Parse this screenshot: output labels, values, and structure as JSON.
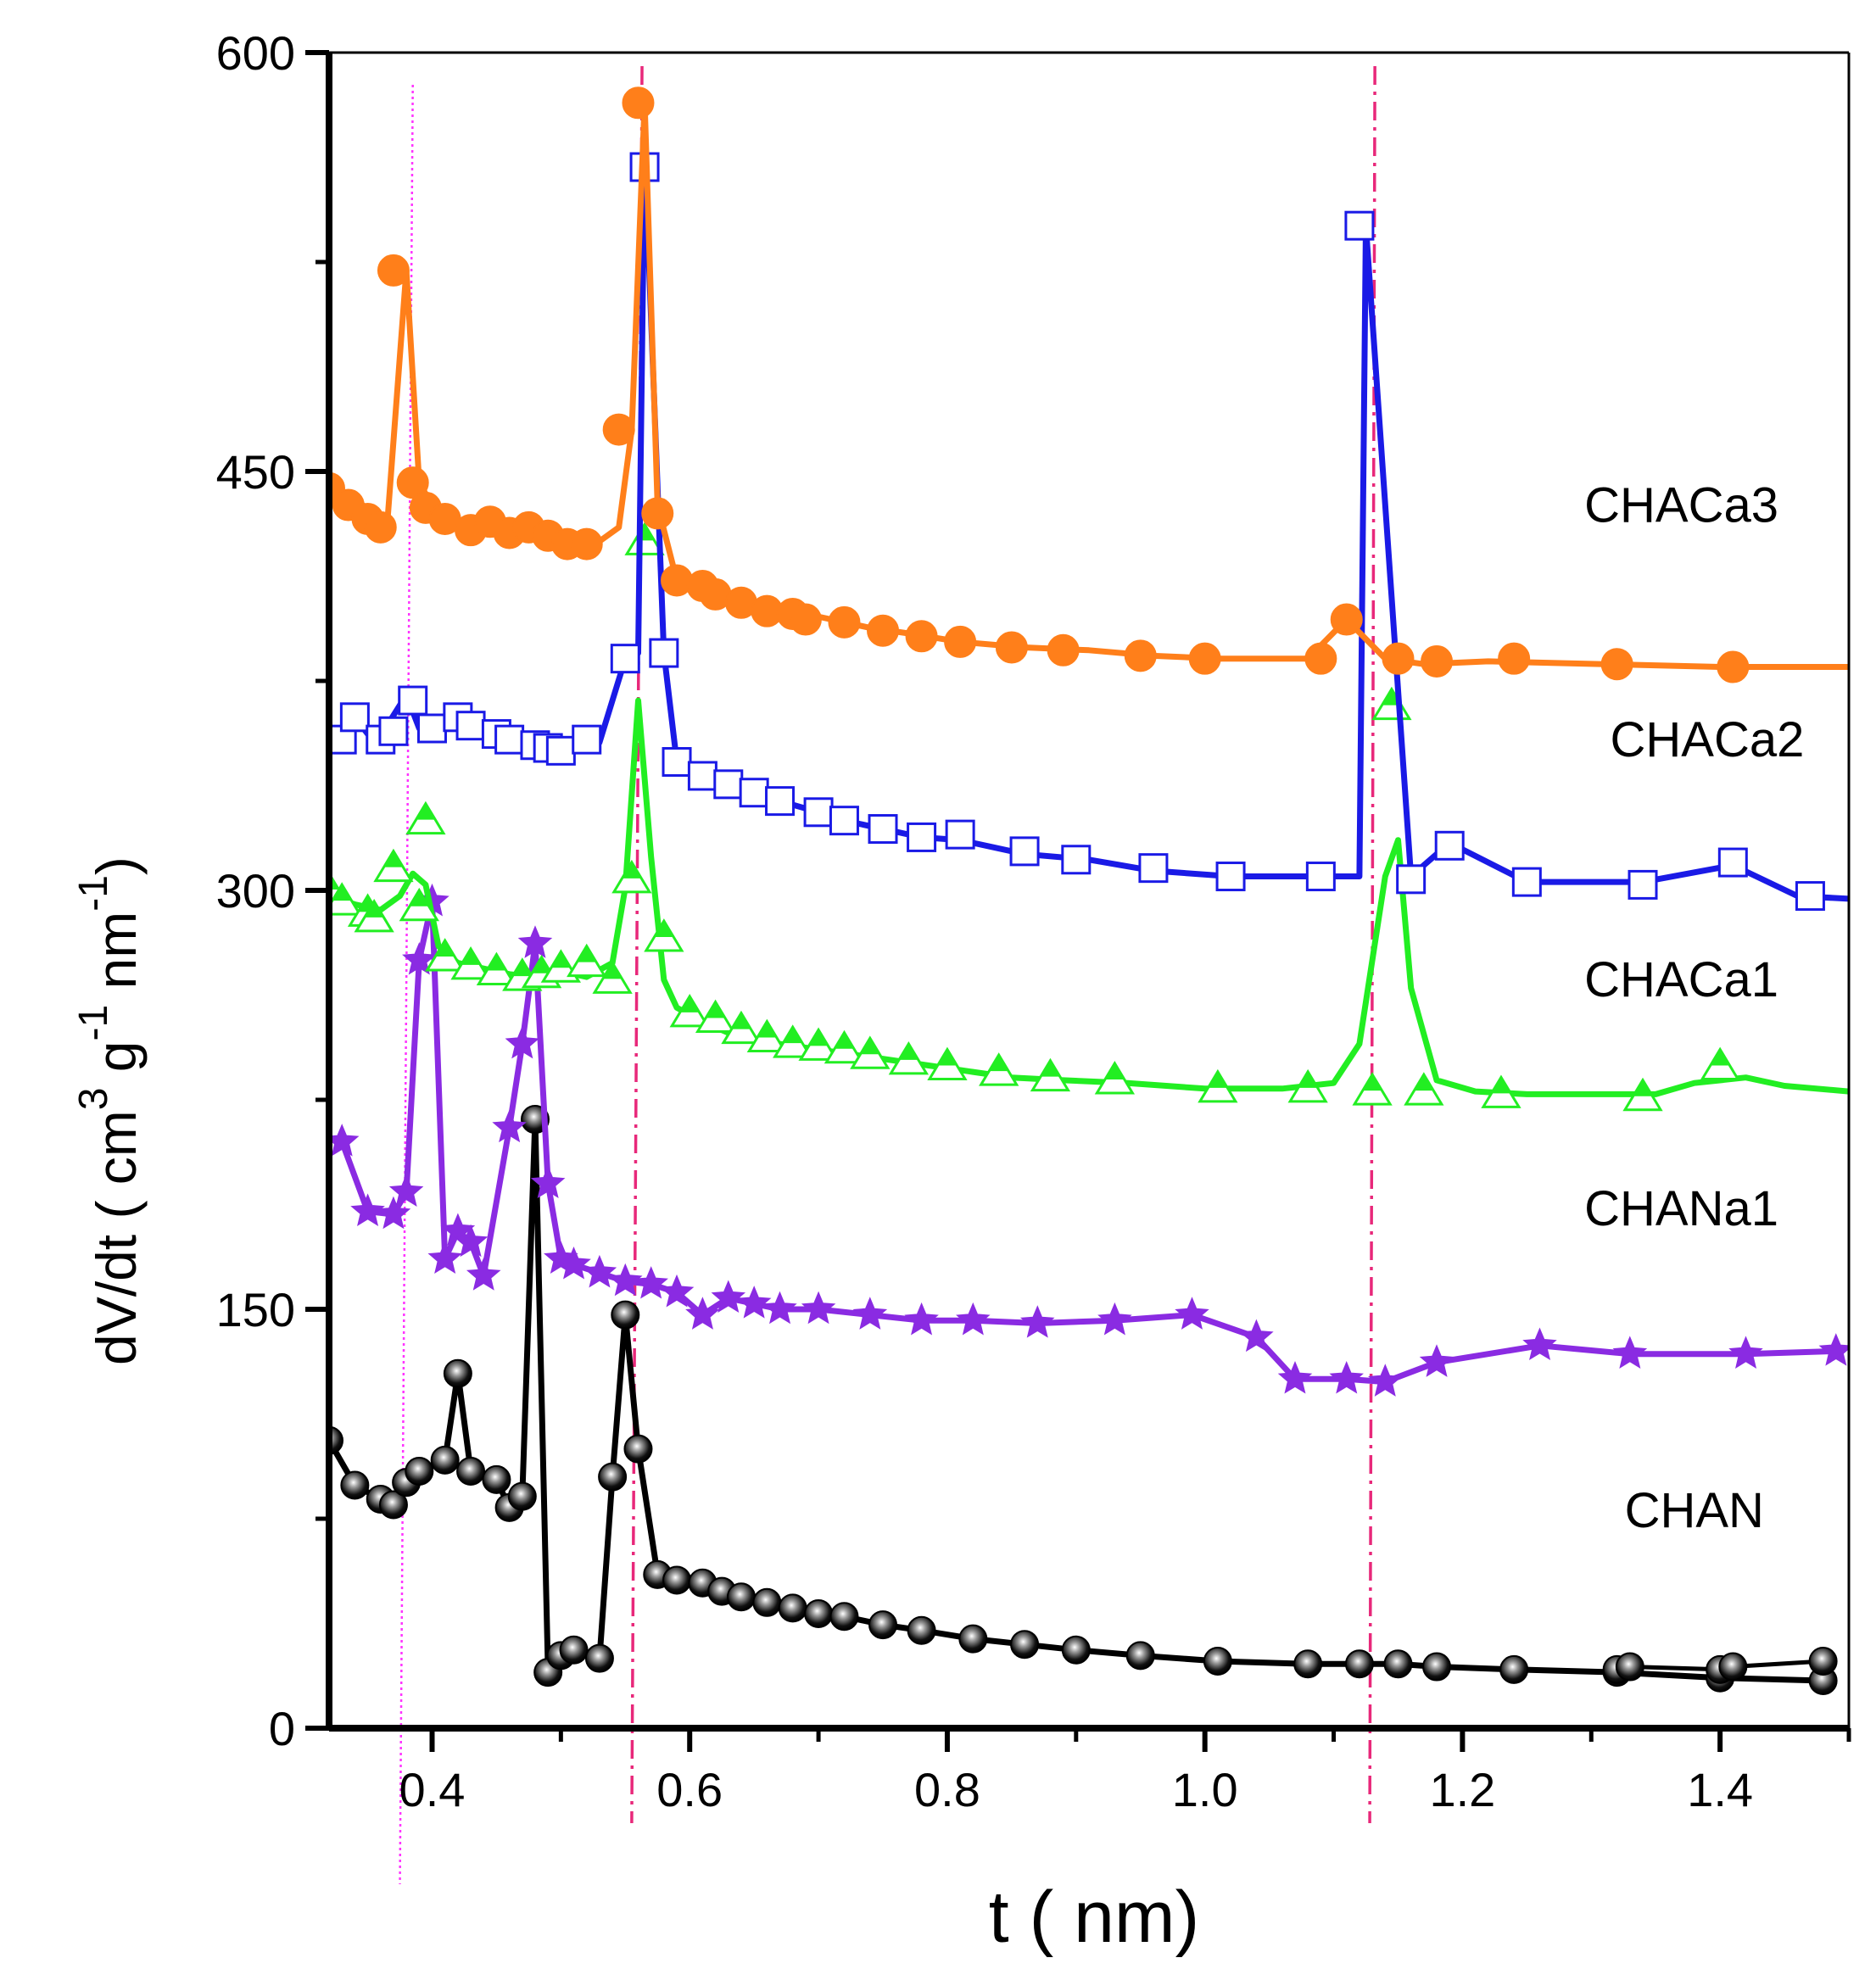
{
  "chart_data": {
    "type": "line",
    "title": "",
    "xlabel": "t (   nm)",
    "ylabel": {
      "main": "dV/dt ( cm",
      "sup1": "3",
      "mid1": " g",
      "sup2": "-1",
      "mid2": " nm",
      "sup3": "-1",
      "end": ")"
    },
    "xlim": [
      0.32,
      1.5
    ],
    "ylim": [
      0,
      600
    ],
    "xticks": [
      {
        "value": 0.4,
        "label": "0.4"
      },
      {
        "value": 0.6,
        "label": "0.6"
      },
      {
        "value": 0.8,
        "label": "0.8"
      },
      {
        "value": 1.0,
        "label": "1.0"
      },
      {
        "value": 1.2,
        "label": "1.2"
      },
      {
        "value": 1.4,
        "label": "1.4"
      }
    ],
    "yticks": [
      {
        "value": 0,
        "label": "0"
      },
      {
        "value": 150,
        "label": "150"
      },
      {
        "value": 300,
        "label": "300"
      },
      {
        "value": 450,
        "label": "450"
      },
      {
        "value": 600,
        "label": "600"
      }
    ],
    "grid": false,
    "reference_lines": [
      {
        "x": 0.375,
        "x2": 0.385,
        "color": "#ff33ff",
        "style": "dotted"
      },
      {
        "x": 0.555,
        "x2": 0.563,
        "color": "#e8287a",
        "style": "dashdot"
      },
      {
        "x": 1.128,
        "x2": 1.132,
        "color": "#e8287a",
        "style": "dashdot"
      }
    ],
    "series": [
      {
        "name": "CHAN",
        "label": "CHAN",
        "color": "#000000",
        "marker": "sphere",
        "label_pos": [
          1.38,
          72
        ],
        "x": [
          0.32,
          0.34,
          0.36,
          0.37,
          0.38,
          0.39,
          0.41,
          0.42,
          0.43,
          0.45,
          0.46,
          0.47,
          0.48,
          0.49,
          0.5,
          0.51,
          0.53,
          0.54,
          0.55,
          0.56,
          0.575,
          0.59,
          0.61,
          0.625,
          0.64,
          0.66,
          0.68,
          0.7,
          0.72,
          0.75,
          0.78,
          0.82,
          0.86,
          0.9,
          0.95,
          1.01,
          1.08,
          1.12,
          1.15,
          1.18,
          1.24,
          1.32,
          1.4,
          1.48
        ],
        "y": [
          103,
          87,
          82,
          80,
          88,
          92,
          96,
          127,
          92,
          89,
          79,
          83,
          218,
          20,
          26,
          28,
          25,
          90,
          148,
          100,
          55,
          53,
          52,
          49,
          47,
          45,
          43,
          41,
          40,
          37,
          35,
          32,
          30,
          28,
          26,
          24,
          23,
          23,
          23,
          22,
          21,
          20,
          18,
          17
        ],
        "trace": [
          [
            1.32,
            21
          ],
          [
            1.33,
            22
          ],
          [
            1.4,
            21
          ],
          [
            1.41,
            22
          ],
          [
            1.48,
            24
          ]
        ]
      },
      {
        "name": "CHANa1",
        "label": "CHANa1",
        "color": "#8a2be2",
        "marker": "star",
        "label_pos": [
          1.37,
          180
        ],
        "x": [
          0.33,
          0.35,
          0.37,
          0.38,
          0.39,
          0.4,
          0.41,
          0.42,
          0.43,
          0.44,
          0.46,
          0.47,
          0.48,
          0.49,
          0.5,
          0.51,
          0.53,
          0.55,
          0.57,
          0.59,
          0.61,
          0.63,
          0.65,
          0.67,
          0.7,
          0.74,
          0.78,
          0.82,
          0.87,
          0.93,
          0.99,
          1.04,
          1.07,
          1.11,
          1.14,
          1.18,
          1.26,
          1.33,
          1.42,
          1.49
        ],
        "y": [
          210,
          185,
          184,
          192,
          275,
          296,
          168,
          178,
          174,
          162,
          215,
          245,
          281,
          195,
          168,
          166,
          163,
          160,
          159,
          156,
          148,
          154,
          152,
          150,
          150,
          148,
          146,
          146,
          145,
          146,
          148,
          140,
          125,
          125,
          124,
          131,
          137,
          134,
          134,
          135
        ]
      },
      {
        "name": "CHACa1",
        "label": "CHACa1",
        "color": "#22ee22",
        "marker": "triangle",
        "label_pos": [
          1.37,
          262
        ],
        "x": [
          0.32,
          0.34,
          0.36,
          0.375,
          0.385,
          0.395,
          0.405,
          0.42,
          0.44,
          0.46,
          0.48,
          0.5,
          0.52,
          0.54,
          0.55,
          0.56,
          0.57,
          0.58,
          0.59,
          0.61,
          0.63,
          0.65,
          0.67,
          0.7,
          0.73,
          0.76,
          0.79,
          0.82,
          0.85,
          0.89,
          0.94,
          1.0,
          1.06,
          1.1,
          1.12,
          1.14,
          1.15,
          1.16,
          1.18,
          1.21,
          1.25,
          1.3,
          1.35,
          1.38,
          1.42,
          1.45,
          1.5
        ],
        "y": [
          298,
          295,
          293,
          298,
          306,
          302,
          280,
          274,
          272,
          270,
          269,
          271,
          269,
          274,
          301,
          368,
          312,
          268,
          258,
          253,
          249,
          247,
          245,
          243,
          241,
          239,
          237,
          235,
          233,
          232,
          231,
          229,
          229,
          231,
          245,
          305,
          318,
          265,
          232,
          228,
          227,
          227,
          227,
          231,
          233,
          230,
          228
        ],
        "markers": [
          [
            0.32,
            300
          ],
          [
            0.33,
            296
          ],
          [
            0.35,
            292
          ],
          [
            0.355,
            290
          ],
          [
            0.37,
            308
          ],
          [
            0.39,
            294
          ],
          [
            0.395,
            325
          ],
          [
            0.41,
            276
          ],
          [
            0.43,
            273
          ],
          [
            0.45,
            271
          ],
          [
            0.47,
            269
          ],
          [
            0.485,
            270
          ],
          [
            0.5,
            272
          ],
          [
            0.52,
            274
          ],
          [
            0.54,
            268
          ],
          [
            0.555,
            304
          ],
          [
            0.565,
            425
          ],
          [
            0.58,
            283
          ],
          [
            0.6,
            256
          ],
          [
            0.62,
            254
          ],
          [
            0.64,
            250
          ],
          [
            0.66,
            247
          ],
          [
            0.68,
            245
          ],
          [
            0.7,
            244
          ],
          [
            0.72,
            243
          ],
          [
            0.74,
            241
          ],
          [
            0.77,
            239
          ],
          [
            0.8,
            237
          ],
          [
            0.84,
            235
          ],
          [
            0.88,
            233
          ],
          [
            0.93,
            232
          ],
          [
            1.01,
            229
          ],
          [
            1.08,
            229
          ],
          [
            1.13,
            228
          ],
          [
            1.17,
            228
          ],
          [
            1.23,
            227
          ],
          [
            1.34,
            226
          ],
          [
            1.4,
            237
          ]
        ],
        "extra_marker": [
          1.145,
          366
        ]
      },
      {
        "name": "CHACa2",
        "label": "CHACa2",
        "color": "#1a1ae6",
        "marker": "square",
        "label_pos": [
          1.39,
          348
        ],
        "x": [
          0.32,
          0.34,
          0.35,
          0.365,
          0.38,
          0.39,
          0.41,
          0.42,
          0.44,
          0.45,
          0.46,
          0.48,
          0.49,
          0.51,
          0.53,
          0.55,
          0.56,
          0.565,
          0.58,
          0.59,
          0.61,
          0.63,
          0.65,
          0.67,
          0.7,
          0.72,
          0.75,
          0.78,
          0.81,
          0.86,
          0.91,
          0.96,
          1.02,
          1.09,
          1.12,
          1.125,
          1.16,
          1.19,
          1.25,
          1.34,
          1.41,
          1.46,
          1.5
        ],
        "y": [
          353,
          362,
          356,
          359,
          370,
          358,
          360,
          364,
          357,
          356,
          357,
          354,
          352,
          351,
          353,
          383,
          385,
          565,
          385,
          346,
          341,
          338,
          335,
          332,
          328,
          325,
          322,
          319,
          318,
          313,
          311,
          307,
          305,
          305,
          305,
          538,
          305,
          317,
          303,
          303,
          309,
          298,
          297
        ],
        "markers": [
          [
            0.33,
            354
          ],
          [
            0.34,
            362
          ],
          [
            0.36,
            354
          ],
          [
            0.37,
            357
          ],
          [
            0.385,
            368
          ],
          [
            0.4,
            358
          ],
          [
            0.42,
            362
          ],
          [
            0.43,
            359
          ],
          [
            0.45,
            356
          ],
          [
            0.46,
            354
          ],
          [
            0.48,
            352
          ],
          [
            0.49,
            351
          ],
          [
            0.5,
            350
          ],
          [
            0.52,
            354
          ],
          [
            0.55,
            383
          ],
          [
            0.565,
            559
          ],
          [
            0.58,
            385
          ],
          [
            0.59,
            346
          ],
          [
            0.61,
            341
          ],
          [
            0.63,
            338
          ],
          [
            0.65,
            335
          ],
          [
            0.67,
            332
          ],
          [
            0.7,
            328
          ],
          [
            0.72,
            325
          ],
          [
            0.75,
            322
          ],
          [
            0.78,
            319
          ],
          [
            0.81,
            320
          ],
          [
            0.86,
            314
          ],
          [
            0.9,
            311
          ],
          [
            0.96,
            308
          ],
          [
            1.02,
            305
          ],
          [
            1.09,
            305
          ],
          [
            1.12,
            538
          ],
          [
            1.16,
            304
          ],
          [
            1.19,
            316
          ],
          [
            1.25,
            303
          ],
          [
            1.34,
            302
          ],
          [
            1.41,
            310
          ],
          [
            1.47,
            298
          ]
        ]
      },
      {
        "name": "CHACa3",
        "label": "CHACa3",
        "color": "#ff7f1a",
        "marker": "circle",
        "label_pos": [
          1.37,
          432
        ],
        "x": [
          0.32,
          0.34,
          0.355,
          0.365,
          0.38,
          0.39,
          0.4,
          0.41,
          0.43,
          0.45,
          0.46,
          0.48,
          0.49,
          0.51,
          0.53,
          0.545,
          0.555,
          0.565,
          0.575,
          0.59,
          0.61,
          0.63,
          0.65,
          0.67,
          0.69,
          0.71,
          0.74,
          0.77,
          0.81,
          0.86,
          0.91,
          0.96,
          1.01,
          1.08,
          1.11,
          1.14,
          1.17,
          1.22,
          1.31,
          1.4,
          1.5
        ],
        "y": [
          444,
          440,
          435,
          430,
          522,
          446,
          438,
          433,
          430,
          432,
          428,
          430,
          428,
          424,
          425,
          430,
          465,
          582,
          438,
          411,
          409,
          406,
          403,
          400,
          399,
          397,
          394,
          392,
          389,
          387,
          386,
          384,
          383,
          383,
          397,
          383,
          381,
          382,
          381,
          380,
          380
        ],
        "markers": [
          [
            0.32,
            444
          ],
          [
            0.335,
            438
          ],
          [
            0.35,
            433
          ],
          [
            0.36,
            430
          ],
          [
            0.37,
            522
          ],
          [
            0.385,
            446
          ],
          [
            0.395,
            437
          ],
          [
            0.41,
            433
          ],
          [
            0.43,
            429
          ],
          [
            0.445,
            432
          ],
          [
            0.46,
            428
          ],
          [
            0.475,
            430
          ],
          [
            0.49,
            427
          ],
          [
            0.505,
            424
          ],
          [
            0.52,
            424
          ],
          [
            0.545,
            465
          ],
          [
            0.56,
            582
          ],
          [
            0.575,
            435
          ],
          [
            0.59,
            411
          ],
          [
            0.61,
            409
          ],
          [
            0.62,
            406
          ],
          [
            0.64,
            403
          ],
          [
            0.66,
            400
          ],
          [
            0.68,
            399
          ],
          [
            0.69,
            397
          ],
          [
            0.72,
            396
          ],
          [
            0.75,
            393
          ],
          [
            0.78,
            391
          ],
          [
            0.81,
            389
          ],
          [
            0.85,
            387
          ],
          [
            0.89,
            386
          ],
          [
            0.95,
            384
          ],
          [
            1.0,
            383
          ],
          [
            1.09,
            383
          ],
          [
            1.11,
            397
          ],
          [
            1.15,
            383
          ],
          [
            1.18,
            382
          ],
          [
            1.24,
            383
          ],
          [
            1.32,
            381
          ],
          [
            1.41,
            380
          ]
        ]
      }
    ]
  }
}
